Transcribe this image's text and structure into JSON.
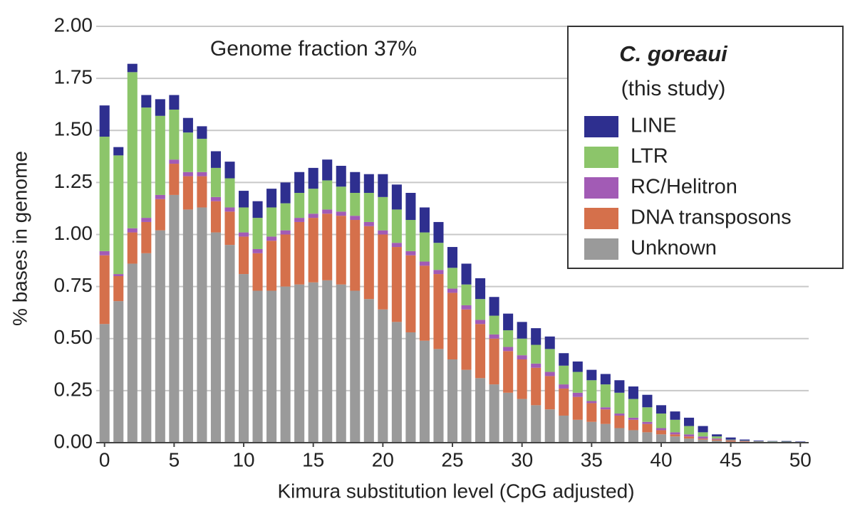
{
  "chart_data": {
    "type": "stacked_bar",
    "annotation": "Genome fraction 37%",
    "legend_title": [
      "C. goreaui",
      "(this study)"
    ],
    "xlabel": "Kimura substitution level (CpG adjusted)",
    "ylabel": "% bases in genome",
    "x": [
      0,
      1,
      2,
      3,
      4,
      5,
      6,
      7,
      8,
      9,
      10,
      11,
      12,
      13,
      14,
      15,
      16,
      17,
      18,
      19,
      20,
      21,
      22,
      23,
      24,
      25,
      26,
      27,
      28,
      29,
      30,
      31,
      32,
      33,
      34,
      35,
      36,
      37,
      38,
      39,
      40,
      41,
      42,
      43,
      44,
      45,
      46,
      47,
      48,
      49,
      50
    ],
    "xlim": [
      -0.6,
      50.6
    ],
    "xticks": [
      0,
      5,
      10,
      15,
      20,
      25,
      30,
      35,
      40,
      45,
      50
    ],
    "ylim": [
      0,
      2
    ],
    "yticks": [
      {
        "value": 0,
        "label": "0.00"
      },
      {
        "value": 0.25,
        "label": "0.25"
      },
      {
        "value": 0.5,
        "label": "0.50"
      },
      {
        "value": 0.75,
        "label": "0.75"
      },
      {
        "value": 1,
        "label": "1.00"
      },
      {
        "value": 1.25,
        "label": "1.25"
      },
      {
        "value": 1.5,
        "label": "1.50"
      },
      {
        "value": 1.75,
        "label": "1.75"
      },
      {
        "value": 2,
        "label": "2.00"
      }
    ],
    "grid": true,
    "legend": "upper right",
    "series": [
      {
        "name": "Unknown",
        "color": "#9a9a9a",
        "values": [
          0.57,
          0.68,
          0.86,
          0.91,
          1.02,
          1.19,
          1.12,
          1.13,
          1.01,
          0.95,
          0.81,
          0.73,
          0.73,
          0.75,
          0.76,
          0.77,
          0.78,
          0.76,
          0.73,
          0.69,
          0.64,
          0.58,
          0.53,
          0.49,
          0.45,
          0.4,
          0.35,
          0.31,
          0.28,
          0.24,
          0.21,
          0.18,
          0.16,
          0.13,
          0.11,
          0.1,
          0.09,
          0.07,
          0.06,
          0.05,
          0.04,
          0.03,
          0.02,
          0.015,
          0.01,
          0.005,
          0.003,
          0.002,
          0.002,
          0.001,
          0.001
        ]
      },
      {
        "name": "DNA transposons",
        "color": "#d5704b",
        "values": [
          0.33,
          0.12,
          0.15,
          0.15,
          0.15,
          0.15,
          0.16,
          0.15,
          0.15,
          0.16,
          0.18,
          0.18,
          0.24,
          0.25,
          0.3,
          0.31,
          0.32,
          0.33,
          0.34,
          0.35,
          0.36,
          0.36,
          0.37,
          0.36,
          0.36,
          0.32,
          0.29,
          0.26,
          0.22,
          0.2,
          0.19,
          0.18,
          0.16,
          0.13,
          0.11,
          0.09,
          0.07,
          0.06,
          0.05,
          0.04,
          0.02,
          0.01,
          0.01,
          0.005,
          0.005,
          0.005,
          0.003,
          0.002,
          0.001,
          0.001,
          0.001
        ]
      },
      {
        "name": "RC/Helitron",
        "color": "#a25bb5",
        "values": [
          0.02,
          0.01,
          0.02,
          0.02,
          0.02,
          0.02,
          0.02,
          0.02,
          0.02,
          0.02,
          0.02,
          0.02,
          0.02,
          0.02,
          0.02,
          0.02,
          0.02,
          0.02,
          0.02,
          0.02,
          0.02,
          0.02,
          0.02,
          0.02,
          0.02,
          0.02,
          0.02,
          0.02,
          0.02,
          0.02,
          0.02,
          0.02,
          0.02,
          0.02,
          0.02,
          0.01,
          0.01,
          0.01,
          0.01,
          0.01,
          0.01,
          0.01,
          0.01,
          0.01,
          0.005,
          0.002,
          0.002,
          0.001,
          0.001,
          0.001,
          0.001
        ]
      },
      {
        "name": "LTR",
        "color": "#8cc56a",
        "values": [
          0.55,
          0.57,
          0.75,
          0.53,
          0.38,
          0.24,
          0.19,
          0.16,
          0.14,
          0.14,
          0.12,
          0.15,
          0.14,
          0.13,
          0.12,
          0.12,
          0.14,
          0.12,
          0.11,
          0.14,
          0.16,
          0.16,
          0.15,
          0.14,
          0.13,
          0.1,
          0.1,
          0.1,
          0.09,
          0.08,
          0.08,
          0.09,
          0.11,
          0.09,
          0.1,
          0.1,
          0.11,
          0.1,
          0.09,
          0.07,
          0.07,
          0.06,
          0.04,
          0.02,
          0.01,
          0.003,
          0.002,
          0.002,
          0.002,
          0.002,
          0.001
        ]
      },
      {
        "name": "LINE",
        "color": "#2e2f8f",
        "values": [
          0.15,
          0.04,
          0.04,
          0.06,
          0.08,
          0.07,
          0.07,
          0.06,
          0.08,
          0.08,
          0.08,
          0.08,
          0.09,
          0.1,
          0.1,
          0.1,
          0.1,
          0.1,
          0.1,
          0.09,
          0.11,
          0.12,
          0.13,
          0.12,
          0.1,
          0.1,
          0.1,
          0.1,
          0.09,
          0.08,
          0.08,
          0.08,
          0.06,
          0.06,
          0.05,
          0.05,
          0.05,
          0.06,
          0.06,
          0.06,
          0.04,
          0.04,
          0.04,
          0.03,
          0.01,
          0.01,
          0.005,
          0.003,
          0.002,
          0.003,
          0.002
        ]
      }
    ]
  }
}
